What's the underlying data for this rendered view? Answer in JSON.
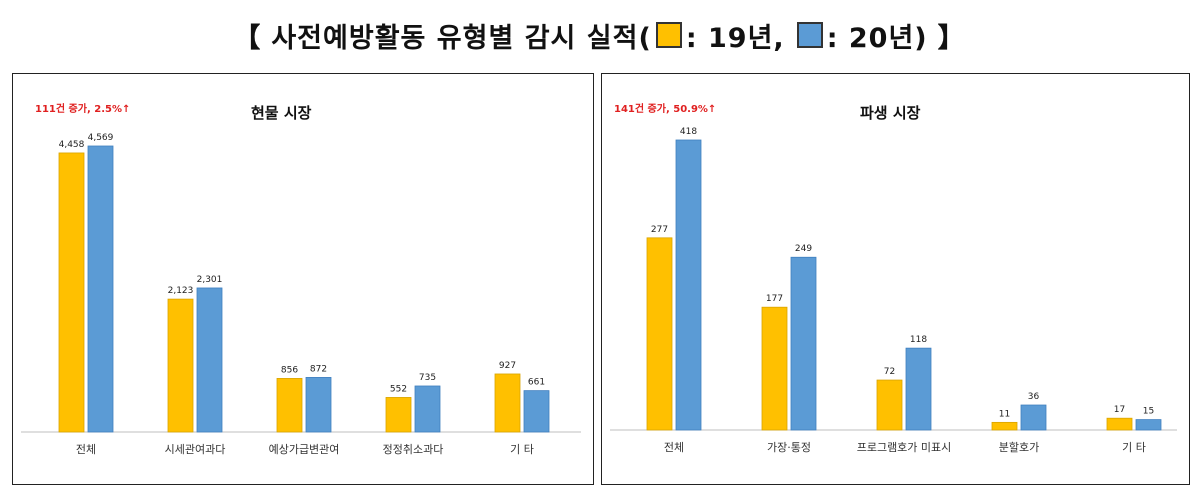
{
  "header": {
    "bracket_open": "【",
    "title": "사전예방활동 유형별 감시 실적(",
    "legend_19": ": 19년,",
    "legend_20": ": 20년)",
    "bracket_close": "】"
  },
  "colors": {
    "y2019": "#FFC000",
    "y2020": "#5B9BD5"
  },
  "chart_data": [
    {
      "type": "bar",
      "title": "현물 시장",
      "annotation": "111건 증가, 2.5%↑",
      "categories": [
        "전체",
        "시세관여과다",
        "예상가급변관여",
        "정정취소과다",
        "기 타"
      ],
      "series": [
        {
          "year": "19년",
          "values": [
            4458,
            2123,
            856,
            552,
            927
          ],
          "labels": [
            "4,458",
            "2,123",
            "856",
            "552",
            "927"
          ]
        },
        {
          "year": "20년",
          "values": [
            4569,
            2301,
            872,
            735,
            661
          ],
          "labels": [
            "4,569",
            "2,301",
            "872",
            "735",
            "661"
          ]
        }
      ],
      "grid": false
    },
    {
      "type": "bar",
      "title": "파생 시장",
      "annotation": "141건 증가, 50.9%↑",
      "categories": [
        "전체",
        "가장·통정",
        "프로그램호가 미표시",
        "분할호가",
        "기 타"
      ],
      "series": [
        {
          "year": "19년",
          "values": [
            277,
            177,
            72,
            11,
            17
          ],
          "labels": [
            "277",
            "177",
            "72",
            "11",
            "17"
          ]
        },
        {
          "year": "20년",
          "values": [
            418,
            249,
            118,
            36,
            15
          ],
          "labels": [
            "418",
            "249",
            "118",
            "36",
            "15"
          ]
        }
      ],
      "grid": false
    }
  ]
}
